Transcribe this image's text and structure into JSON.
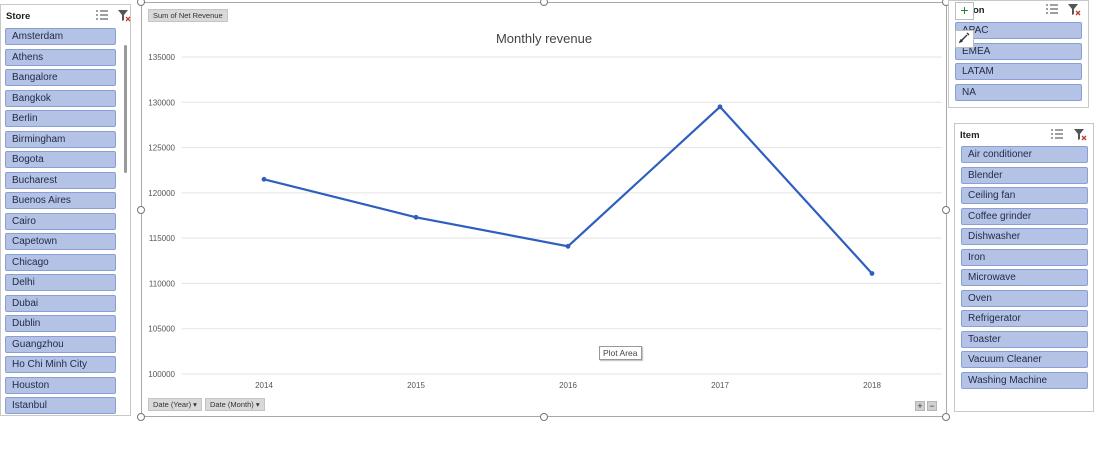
{
  "store_slicer": {
    "title": "Store",
    "items": [
      "Amsterdam",
      "Athens",
      "Bangalore",
      "Bangkok",
      "Berlin",
      "Birmingham",
      "Bogota",
      "Bucharest",
      "Buenos Aires",
      "Cairo",
      "Capetown",
      "Chicago",
      "Delhi",
      "Dubai",
      "Dublin",
      "Guangzhou",
      "Ho Chi Minh City",
      "Houston",
      "Istanbul"
    ]
  },
  "region_slicer": {
    "title": "on",
    "items": [
      "APAC",
      "EMEA",
      "LATAM",
      "NA"
    ]
  },
  "item_slicer": {
    "title": "Item",
    "items": [
      "Air conditioner",
      "Blender",
      "Ceiling fan",
      "Coffee grinder",
      "Dishwasher",
      "Iron",
      "Microwave",
      "Oven",
      "Refrigerator",
      "Toaster",
      "Vacuum Cleaner",
      "Washing Machine"
    ]
  },
  "chart_buttons": {
    "values_field": "Sum of Net Revenue",
    "axis_field_year": "Date (Year)",
    "axis_field_month": "Date (Month)",
    "plot_area_tip": "Plot Area",
    "add_element": "+",
    "zoom_in": "+",
    "zoom_out": "−"
  },
  "chart_data": {
    "type": "line",
    "title": "Monthly revenue",
    "categories": [
      "2014",
      "2015",
      "2016",
      "2017",
      "2018"
    ],
    "series": [
      {
        "values": [
          121500,
          117300,
          114100,
          129500,
          111100
        ]
      }
    ],
    "ylim": [
      100000,
      135000
    ],
    "yticks": [
      100000,
      105000,
      110000,
      115000,
      120000,
      125000,
      130000,
      135000
    ],
    "grid": true,
    "legend": "none",
    "line_color": "#2e5fbf"
  }
}
